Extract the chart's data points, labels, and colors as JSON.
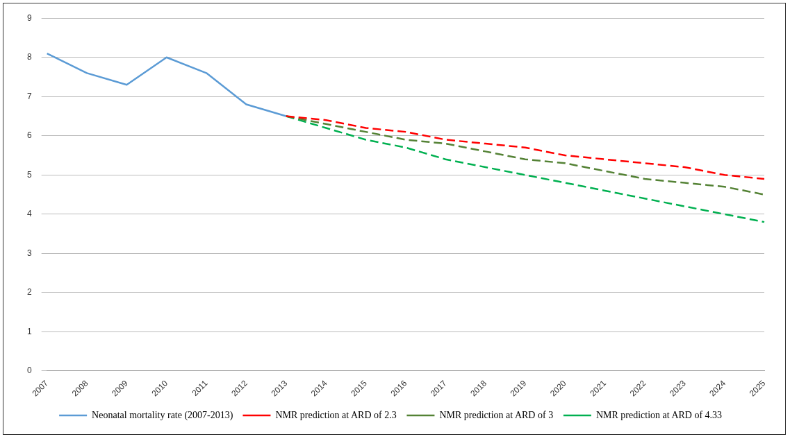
{
  "chart_data": {
    "type": "line",
    "categories": [
      "2007",
      "2008",
      "2009",
      "2010",
      "2011",
      "2012",
      "2013",
      "2014",
      "2015",
      "2016",
      "2017",
      "2018",
      "2019",
      "2020",
      "2021",
      "2022",
      "2023",
      "2024",
      "2025"
    ],
    "series": [
      {
        "name": "Neonatal mortality rate (2007-2013)",
        "color": "#5b9bd5",
        "line_style": "solid",
        "values": [
          8.1,
          7.6,
          7.3,
          8.0,
          7.6,
          6.8,
          6.5,
          null,
          null,
          null,
          null,
          null,
          null,
          null,
          null,
          null,
          null,
          null,
          null
        ]
      },
      {
        "name": "NMR prediction at ARD of 2.3",
        "color": "#ff0000",
        "line_style": "dashed",
        "values": [
          null,
          null,
          null,
          null,
          null,
          null,
          6.5,
          6.4,
          6.2,
          6.1,
          5.9,
          5.8,
          5.7,
          5.5,
          5.4,
          5.3,
          5.2,
          5.0,
          4.9
        ]
      },
      {
        "name": "NMR prediction at ARD of 3",
        "color": "#548235",
        "line_style": "dashed",
        "values": [
          null,
          null,
          null,
          null,
          null,
          null,
          6.5,
          6.3,
          6.1,
          5.9,
          5.8,
          5.6,
          5.4,
          5.3,
          5.1,
          4.9,
          4.8,
          4.7,
          4.5
        ]
      },
      {
        "name": "NMR prediction at ARD of 4.33",
        "color": "#00b050",
        "line_style": "dashed",
        "values": [
          null,
          null,
          null,
          null,
          null,
          null,
          6.5,
          6.2,
          5.9,
          5.7,
          5.4,
          5.2,
          5.0,
          4.8,
          4.6,
          4.4,
          4.2,
          4.0,
          3.8
        ]
      }
    ],
    "ylim": [
      0,
      9
    ],
    "yticks": [
      0,
      1,
      2,
      3,
      4,
      5,
      6,
      7,
      8,
      9
    ],
    "grid": "y",
    "legend": "bottom",
    "marker": "none"
  }
}
